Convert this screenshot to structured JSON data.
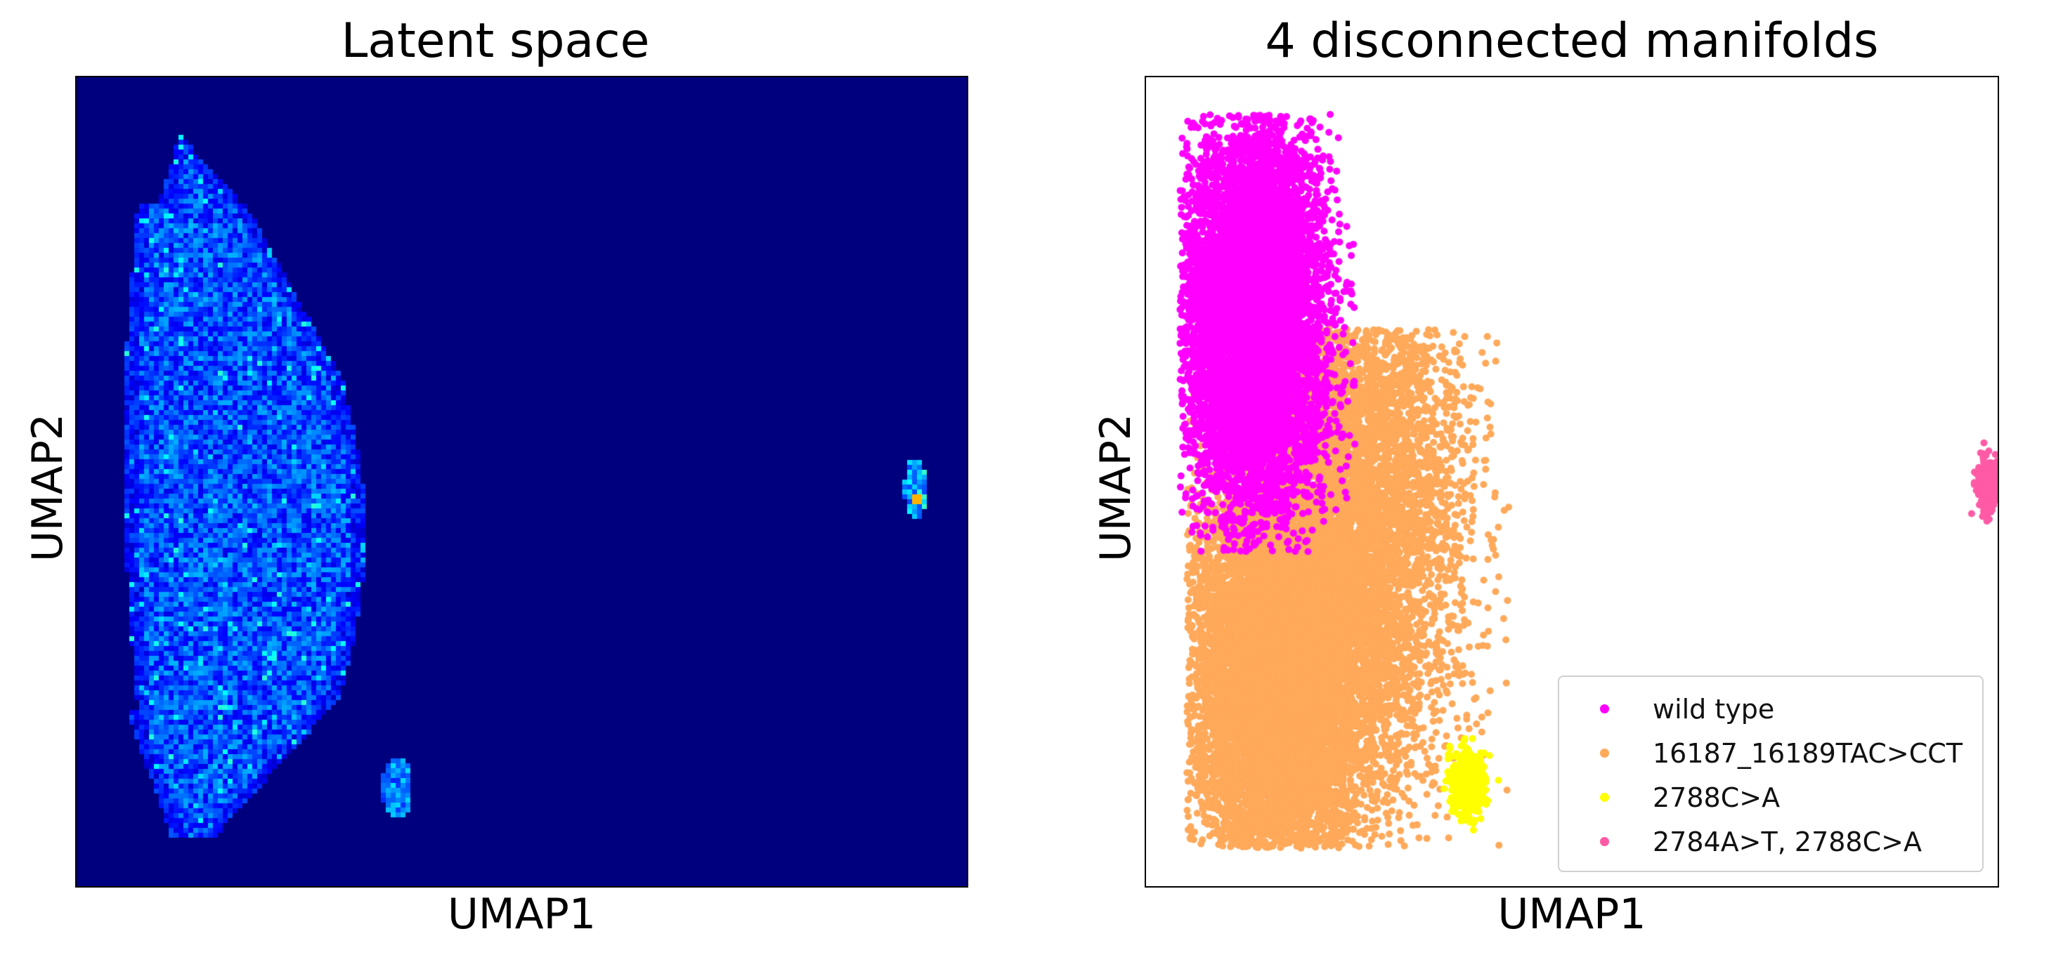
{
  "chart_data": [
    {
      "type": "heatmap",
      "title": "Latent space",
      "xlabel": "UMAP1",
      "ylabel": "UMAP2",
      "xticks": false,
      "yticks": false,
      "colormap": "jet",
      "background_color": "#00007f",
      "clusters": [
        {
          "region": "large left manifold",
          "density": "high"
        },
        {
          "region": "small bottom cluster",
          "density": "medium"
        },
        {
          "region": "small right cluster",
          "density": "peak"
        }
      ]
    },
    {
      "type": "scatter",
      "title": "4 disconnected manifolds",
      "xlabel": "UMAP1",
      "ylabel": "UMAP2",
      "xticks": false,
      "yticks": false,
      "legend": "bottom-right",
      "series": [
        {
          "name": "wild type",
          "color": "#ff00ff"
        },
        {
          "name": "16187_16189TAC>CCT",
          "color": "#ffa95a"
        },
        {
          "name": "2788C>A",
          "color": "#ffff00"
        },
        {
          "name": "2784A>T, 2788C>A",
          "color": "#ff5aa5"
        }
      ]
    }
  ]
}
